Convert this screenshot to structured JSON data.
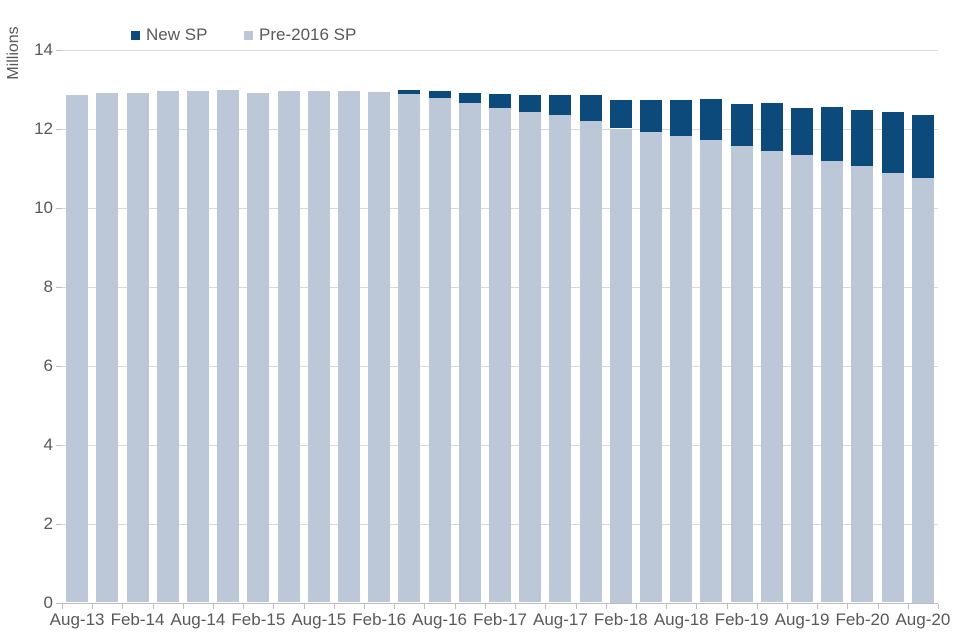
{
  "chart_data": {
    "type": "bar",
    "stacked": true,
    "title": "",
    "ylabel": "Millions",
    "xlabel": "",
    "categories": [
      "Aug-13",
      "Nov-13",
      "Feb-14",
      "May-14",
      "Aug-14",
      "Nov-14",
      "Feb-15",
      "May-15",
      "Aug-15",
      "Nov-15",
      "Feb-16",
      "May-16",
      "Aug-16",
      "Nov-16",
      "Feb-17",
      "May-17",
      "Aug-17",
      "Nov-17",
      "Feb-18",
      "May-18",
      "Aug-18",
      "Nov-18",
      "Feb-19",
      "May-19",
      "Aug-19",
      "Nov-19",
      "Feb-20",
      "May-20",
      "Aug-20"
    ],
    "x_label_interval": 2,
    "x_tick_labels_shown": [
      "Aug-13",
      "Feb-14",
      "Aug-14",
      "Feb-15",
      "Aug-15",
      "Feb-16",
      "Aug-16",
      "Feb-17",
      "Aug-17",
      "Feb-18",
      "Aug-18",
      "Feb-19",
      "Aug-19",
      "Feb-20",
      "Aug-20"
    ],
    "series": [
      {
        "name": "Pre-2016 SP",
        "color": "#bcc7d8",
        "values": [
          12.85,
          12.9,
          12.9,
          12.95,
          12.95,
          12.97,
          12.91,
          12.94,
          12.96,
          12.94,
          12.92,
          12.88,
          12.78,
          12.65,
          12.52,
          12.43,
          12.33,
          12.18,
          12.0,
          11.92,
          11.81,
          11.7,
          11.55,
          11.44,
          11.32,
          11.17,
          11.05,
          10.88,
          10.75
        ]
      },
      {
        "name": "New SP",
        "color": "#0c4a7c",
        "values": [
          0,
          0,
          0,
          0,
          0,
          0,
          0,
          0,
          0,
          0,
          0,
          0.09,
          0.17,
          0.26,
          0.35,
          0.43,
          0.53,
          0.66,
          0.73,
          0.8,
          0.92,
          1.05,
          1.07,
          1.2,
          1.21,
          1.37,
          1.43,
          1.53,
          1.58
        ]
      }
    ],
    "ylim": [
      0,
      14
    ],
    "y_ticks": [
      0,
      2,
      4,
      6,
      8,
      10,
      12,
      14
    ],
    "grid": true,
    "legend_position": "top",
    "legend_order": [
      "New SP",
      "Pre-2016 SP"
    ]
  },
  "colors": {
    "new_sp": "#0c4a7c",
    "pre_2016_sp": "#bcc7d8",
    "gridline": "#d9d9d9",
    "axis_line": "#bfbfbf",
    "text": "#595959",
    "background": "#ffffff"
  }
}
